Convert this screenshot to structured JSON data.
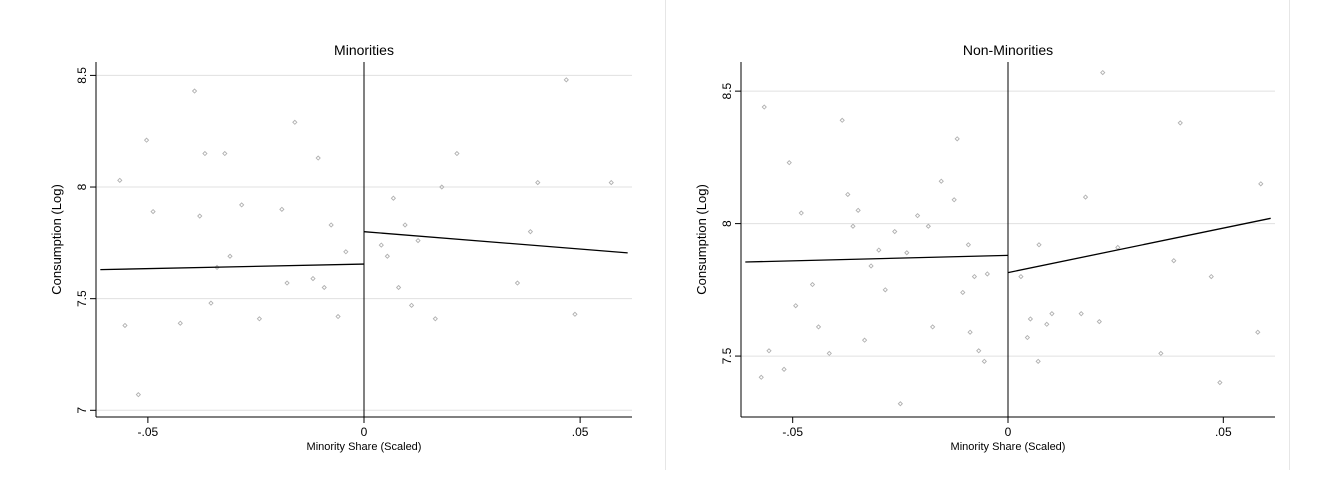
{
  "chart_data": [
    {
      "type": "scatter",
      "title": "Minorities",
      "xlabel": "Minority Share (Scaled)",
      "ylabel": "Consumption (Log)",
      "xlim": [
        -0.062,
        0.062
      ],
      "ylim": [
        6.97,
        8.56
      ],
      "xticks": [
        {
          "value": -0.05,
          "label": "-.05"
        },
        {
          "value": 0,
          "label": "0"
        },
        {
          "value": 0.05,
          "label": ".05"
        }
      ],
      "yticks": [
        {
          "value": 7,
          "label": "7"
        },
        {
          "value": 7.5,
          "label": "7.5"
        },
        {
          "value": 8,
          "label": "8"
        },
        {
          "value": 8.5,
          "label": "8.5"
        }
      ],
      "grid": true,
      "cutoff": 0,
      "colors": {
        "points": "#b0b0b0",
        "lines": "#000000",
        "grid": "#e0e0e0"
      },
      "points": [
        {
          "x": -0.0565,
          "y": 8.03
        },
        {
          "x": -0.0553,
          "y": 7.38
        },
        {
          "x": -0.0522,
          "y": 7.07
        },
        {
          "x": -0.0503,
          "y": 8.21
        },
        {
          "x": -0.0488,
          "y": 7.89
        },
        {
          "x": -0.0425,
          "y": 7.39
        },
        {
          "x": -0.0392,
          "y": 8.43
        },
        {
          "x": -0.038,
          "y": 7.87
        },
        {
          "x": -0.0368,
          "y": 8.15
        },
        {
          "x": -0.0354,
          "y": 7.48
        },
        {
          "x": -0.034,
          "y": 7.64
        },
        {
          "x": -0.0322,
          "y": 8.15
        },
        {
          "x": -0.031,
          "y": 7.69
        },
        {
          "x": -0.0283,
          "y": 7.92
        },
        {
          "x": -0.0242,
          "y": 7.41
        },
        {
          "x": -0.019,
          "y": 7.9
        },
        {
          "x": -0.0178,
          "y": 7.57
        },
        {
          "x": -0.016,
          "y": 8.29
        },
        {
          "x": -0.0118,
          "y": 7.59
        },
        {
          "x": -0.0106,
          "y": 8.13
        },
        {
          "x": -0.0092,
          "y": 7.55
        },
        {
          "x": -0.0076,
          "y": 7.83
        },
        {
          "x": -0.006,
          "y": 7.42
        },
        {
          "x": -0.0042,
          "y": 7.71
        },
        {
          "x": 0.004,
          "y": 7.74
        },
        {
          "x": 0.0054,
          "y": 7.69
        },
        {
          "x": 0.0068,
          "y": 7.95
        },
        {
          "x": 0.008,
          "y": 7.55
        },
        {
          "x": 0.0095,
          "y": 7.83
        },
        {
          "x": 0.011,
          "y": 7.47
        },
        {
          "x": 0.0125,
          "y": 7.76
        },
        {
          "x": 0.0165,
          "y": 7.41
        },
        {
          "x": 0.018,
          "y": 8.0
        },
        {
          "x": 0.0215,
          "y": 8.15
        },
        {
          "x": 0.0355,
          "y": 7.57
        },
        {
          "x": 0.0385,
          "y": 7.8
        },
        {
          "x": 0.0402,
          "y": 8.02
        },
        {
          "x": 0.0468,
          "y": 8.48
        },
        {
          "x": 0.0488,
          "y": 7.43
        },
        {
          "x": 0.0572,
          "y": 8.02
        }
      ],
      "fit_lines": [
        {
          "x": [
            -0.061,
            0
          ],
          "y": [
            7.63,
            7.655
          ]
        },
        {
          "x": [
            0,
            0.061
          ],
          "y": [
            7.8,
            7.705
          ]
        }
      ]
    },
    {
      "type": "scatter",
      "title": "Non-Minorities",
      "xlabel": "Minority Share (Scaled)",
      "ylabel": "Consumption (Log)",
      "xlim": [
        -0.062,
        0.062
      ],
      "ylim": [
        7.27,
        8.61
      ],
      "xticks": [
        {
          "value": -0.05,
          "label": "-.05"
        },
        {
          "value": 0,
          "label": "0"
        },
        {
          "value": 0.05,
          "label": ".05"
        }
      ],
      "yticks": [
        {
          "value": 7.5,
          "label": "7.5"
        },
        {
          "value": 8,
          "label": "8"
        },
        {
          "value": 8.5,
          "label": "8.5"
        }
      ],
      "grid": true,
      "cutoff": 0,
      "colors": {
        "points": "#b0b0b0",
        "lines": "#000000",
        "grid": "#e0e0e0"
      },
      "points": [
        {
          "x": -0.0573,
          "y": 7.42
        },
        {
          "x": -0.0566,
          "y": 8.44
        },
        {
          "x": -0.0555,
          "y": 7.52
        },
        {
          "x": -0.052,
          "y": 7.45
        },
        {
          "x": -0.0508,
          "y": 8.23
        },
        {
          "x": -0.0493,
          "y": 7.69
        },
        {
          "x": -0.048,
          "y": 8.04
        },
        {
          "x": -0.0454,
          "y": 7.77
        },
        {
          "x": -0.044,
          "y": 7.61
        },
        {
          "x": -0.0415,
          "y": 7.51
        },
        {
          "x": -0.0385,
          "y": 8.39
        },
        {
          "x": -0.0372,
          "y": 8.11
        },
        {
          "x": -0.036,
          "y": 7.99
        },
        {
          "x": -0.0348,
          "y": 8.05
        },
        {
          "x": -0.0333,
          "y": 7.56
        },
        {
          "x": -0.0318,
          "y": 7.84
        },
        {
          "x": -0.03,
          "y": 7.9
        },
        {
          "x": -0.0285,
          "y": 7.75
        },
        {
          "x": -0.0263,
          "y": 7.97
        },
        {
          "x": -0.025,
          "y": 7.32
        },
        {
          "x": -0.0235,
          "y": 7.89
        },
        {
          "x": -0.021,
          "y": 8.03
        },
        {
          "x": -0.0185,
          "y": 7.99
        },
        {
          "x": -0.0175,
          "y": 7.61
        },
        {
          "x": -0.0155,
          "y": 8.16
        },
        {
          "x": -0.0125,
          "y": 8.09
        },
        {
          "x": -0.0118,
          "y": 8.32
        },
        {
          "x": -0.0105,
          "y": 7.74
        },
        {
          "x": -0.0092,
          "y": 7.92
        },
        {
          "x": -0.0088,
          "y": 7.59
        },
        {
          "x": -0.0078,
          "y": 7.8
        },
        {
          "x": -0.0068,
          "y": 7.52
        },
        {
          "x": -0.0055,
          "y": 7.48
        },
        {
          "x": -0.0048,
          "y": 7.81
        },
        {
          "x": 0.003,
          "y": 7.8
        },
        {
          "x": 0.0045,
          "y": 7.57
        },
        {
          "x": 0.0052,
          "y": 7.64
        },
        {
          "x": 0.007,
          "y": 7.48
        },
        {
          "x": 0.0072,
          "y": 7.92
        },
        {
          "x": 0.009,
          "y": 7.62
        },
        {
          "x": 0.0102,
          "y": 7.66
        },
        {
          "x": 0.017,
          "y": 7.66
        },
        {
          "x": 0.018,
          "y": 8.1
        },
        {
          "x": 0.0212,
          "y": 7.63
        },
        {
          "x": 0.022,
          "y": 8.57
        },
        {
          "x": 0.0255,
          "y": 7.91
        },
        {
          "x": 0.0355,
          "y": 7.51
        },
        {
          "x": 0.0385,
          "y": 7.86
        },
        {
          "x": 0.04,
          "y": 8.38
        },
        {
          "x": 0.0472,
          "y": 7.8
        },
        {
          "x": 0.0492,
          "y": 7.4
        },
        {
          "x": 0.058,
          "y": 7.59
        },
        {
          "x": 0.0587,
          "y": 8.15
        }
      ],
      "fit_lines": [
        {
          "x": [
            -0.061,
            0
          ],
          "y": [
            7.855,
            7.88
          ]
        },
        {
          "x": [
            0,
            0.061
          ],
          "y": [
            7.815,
            8.02
          ]
        }
      ]
    }
  ]
}
